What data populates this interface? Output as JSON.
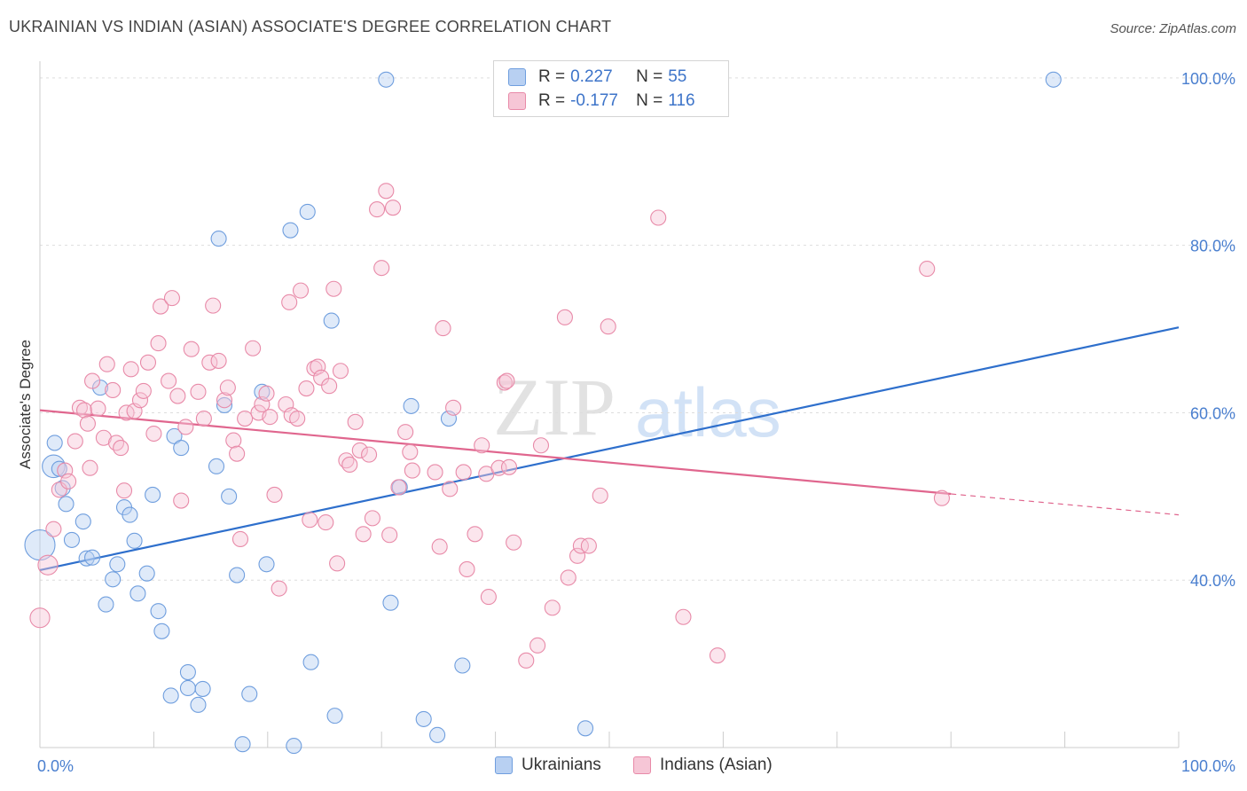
{
  "title": "UKRAINIAN VS INDIAN (ASIAN) ASSOCIATE'S DEGREE CORRELATION CHART",
  "source": "Source: ZipAtlas.com",
  "watermark": {
    "zip": "ZIP",
    "atlas": "atlas"
  },
  "colors": {
    "blue_fill": "#b8d0f2",
    "blue_stroke": "#6f9ede",
    "blue_line": "#2e6fcc",
    "pink_fill": "#f6c6d6",
    "pink_stroke": "#e88aa8",
    "pink_line": "#e0668e",
    "tick_text": "#4a7fcf",
    "grid": "#dddddd"
  },
  "legend": {
    "r_label": "R =",
    "n_label": "N =",
    "rows": [
      {
        "series": "Ukrainians",
        "r": "0.227",
        "n": "55"
      },
      {
        "series": "Indians (Asian)",
        "r": "-0.177",
        "n": "116"
      }
    ]
  },
  "chart_data": {
    "type": "scatter",
    "title": "UKRAINIAN VS INDIAN (ASIAN) ASSOCIATE'S DEGREE CORRELATION CHART",
    "xlabel": "",
    "ylabel": "Associate's Degree",
    "xlim": [
      0,
      100
    ],
    "ylim": [
      20,
      102
    ],
    "x_tick_labels": [
      {
        "value": 0,
        "label": "0.0%"
      },
      {
        "value": 100,
        "label": "100.0%"
      }
    ],
    "x_minor_ticks": [
      0,
      10,
      20,
      30,
      40,
      50,
      60,
      70,
      80,
      90,
      100
    ],
    "y_ticks": [
      {
        "value": 40,
        "label": "40.0%"
      },
      {
        "value": 60,
        "label": "60.0%"
      },
      {
        "value": 80,
        "label": "80.0%"
      },
      {
        "value": 100,
        "label": "100.0%"
      }
    ],
    "grid": "horizontal dashed",
    "series": [
      {
        "name": "Ukrainians",
        "color": "#6f9ede",
        "trend": {
          "x": [
            0,
            100
          ],
          "y": [
            41.2,
            70.2
          ],
          "dashed_from": null
        },
        "points": [
          [
            0,
            44.2,
            2
          ],
          [
            1.2,
            53.6,
            1.5
          ],
          [
            1.3,
            56.4,
            1
          ],
          [
            1.7,
            53.3,
            1
          ],
          [
            2.0,
            51.0,
            1
          ],
          [
            2.3,
            49.1,
            1
          ],
          [
            2.8,
            44.8,
            1
          ],
          [
            3.8,
            47.0,
            1
          ],
          [
            4.1,
            42.6,
            1
          ],
          [
            4.6,
            42.7,
            1
          ],
          [
            5.3,
            63.0,
            1
          ],
          [
            5.8,
            37.1,
            1
          ],
          [
            6.4,
            40.1,
            1
          ],
          [
            6.8,
            41.9,
            1
          ],
          [
            7.4,
            48.7,
            1
          ],
          [
            7.9,
            47.8,
            1
          ],
          [
            8.3,
            44.7,
            1
          ],
          [
            8.6,
            38.4,
            1
          ],
          [
            9.4,
            40.8,
            1
          ],
          [
            9.9,
            50.2,
            1
          ],
          [
            10.4,
            36.3,
            1
          ],
          [
            10.7,
            33.9,
            1
          ],
          [
            11.5,
            26.2,
            1
          ],
          [
            11.8,
            57.2,
            1
          ],
          [
            12.4,
            55.8,
            1
          ],
          [
            13.0,
            29.0,
            1
          ],
          [
            13.0,
            27.1,
            1
          ],
          [
            13.9,
            25.1,
            1
          ],
          [
            14.3,
            27.0,
            1
          ],
          [
            15.5,
            53.6,
            1
          ],
          [
            15.7,
            80.8,
            1
          ],
          [
            16.2,
            60.9,
            1
          ],
          [
            16.6,
            50.0,
            1
          ],
          [
            17.3,
            40.6,
            1
          ],
          [
            17.8,
            20.4,
            1
          ],
          [
            18.4,
            26.4,
            1
          ],
          [
            19.5,
            62.5,
            1
          ],
          [
            19.9,
            41.9,
            1
          ],
          [
            22.0,
            81.8,
            1
          ],
          [
            22.3,
            20.2,
            1
          ],
          [
            23.5,
            84.0,
            1
          ],
          [
            23.8,
            30.2,
            1
          ],
          [
            25.6,
            71.0,
            1
          ],
          [
            25.9,
            23.8,
            1
          ],
          [
            30.4,
            99.8,
            1
          ],
          [
            30.8,
            37.3,
            1
          ],
          [
            31.6,
            51.1,
            1
          ],
          [
            32.6,
            60.8,
            1
          ],
          [
            33.7,
            23.4,
            1
          ],
          [
            34.9,
            21.5,
            1
          ],
          [
            35.9,
            59.3,
            1
          ],
          [
            37.1,
            29.8,
            1
          ],
          [
            47.9,
            22.3,
            1
          ],
          [
            89.0,
            99.8,
            1
          ]
        ]
      },
      {
        "name": "Indians (Asian)",
        "color": "#e88aa8",
        "trend": {
          "x": [
            0,
            100
          ],
          "y": [
            60.3,
            47.8
          ],
          "dashed_from": 80
        },
        "points": [
          [
            0,
            35.5,
            1.3
          ],
          [
            0.7,
            41.8,
            1.3
          ],
          [
            1.2,
            46.1,
            1
          ],
          [
            1.7,
            50.8,
            1
          ],
          [
            2.2,
            53.1,
            1
          ],
          [
            2.5,
            51.8,
            1
          ],
          [
            3.1,
            56.6,
            1
          ],
          [
            3.5,
            60.6,
            1
          ],
          [
            3.9,
            60.3,
            1
          ],
          [
            4.2,
            58.7,
            1
          ],
          [
            4.4,
            53.4,
            1
          ],
          [
            4.6,
            63.8,
            1
          ],
          [
            5.1,
            60.5,
            1
          ],
          [
            5.6,
            57.0,
            1
          ],
          [
            5.9,
            65.8,
            1
          ],
          [
            6.4,
            62.7,
            1
          ],
          [
            6.7,
            56.4,
            1
          ],
          [
            7.1,
            55.8,
            1
          ],
          [
            7.4,
            50.7,
            1
          ],
          [
            7.6,
            60.0,
            1
          ],
          [
            8.0,
            65.2,
            1
          ],
          [
            8.3,
            60.2,
            1
          ],
          [
            8.8,
            61.5,
            1
          ],
          [
            9.1,
            62.6,
            1
          ],
          [
            9.5,
            66.0,
            1
          ],
          [
            10.0,
            57.5,
            1
          ],
          [
            10.4,
            68.3,
            1
          ],
          [
            10.6,
            72.7,
            1
          ],
          [
            11.3,
            63.8,
            1
          ],
          [
            11.6,
            73.7,
            1
          ],
          [
            12.1,
            62.0,
            1
          ],
          [
            12.4,
            49.5,
            1
          ],
          [
            12.8,
            58.3,
            1
          ],
          [
            13.3,
            67.6,
            1
          ],
          [
            13.9,
            62.5,
            1
          ],
          [
            14.4,
            59.3,
            1
          ],
          [
            14.9,
            66.0,
            1
          ],
          [
            15.2,
            72.8,
            1
          ],
          [
            15.7,
            66.2,
            1
          ],
          [
            16.2,
            61.5,
            1
          ],
          [
            16.5,
            63.0,
            1
          ],
          [
            17.0,
            56.7,
            1
          ],
          [
            17.3,
            55.1,
            1
          ],
          [
            17.6,
            44.9,
            1
          ],
          [
            18.0,
            59.3,
            1
          ],
          [
            18.7,
            67.7,
            1
          ],
          [
            19.2,
            60.0,
            1
          ],
          [
            19.5,
            61.0,
            1
          ],
          [
            19.9,
            62.3,
            1
          ],
          [
            20.2,
            59.5,
            1
          ],
          [
            20.6,
            50.2,
            1
          ],
          [
            21.0,
            39.0,
            1
          ],
          [
            21.6,
            61.0,
            1
          ],
          [
            21.9,
            73.2,
            1
          ],
          [
            22.1,
            59.7,
            1
          ],
          [
            22.6,
            59.3,
            1
          ],
          [
            22.9,
            74.6,
            1
          ],
          [
            23.4,
            62.9,
            1
          ],
          [
            23.7,
            47.2,
            1
          ],
          [
            24.1,
            65.3,
            1
          ],
          [
            24.4,
            65.5,
            1
          ],
          [
            24.7,
            64.2,
            1
          ],
          [
            25.1,
            46.9,
            1
          ],
          [
            25.4,
            63.2,
            1
          ],
          [
            25.8,
            74.8,
            1
          ],
          [
            26.1,
            42.0,
            1
          ],
          [
            26.4,
            65.0,
            1
          ],
          [
            26.9,
            54.3,
            1
          ],
          [
            27.2,
            53.8,
            1
          ],
          [
            27.7,
            58.9,
            1
          ],
          [
            28.1,
            55.5,
            1
          ],
          [
            28.4,
            45.5,
            1
          ],
          [
            28.9,
            55.0,
            1
          ],
          [
            29.2,
            47.4,
            1
          ],
          [
            29.6,
            84.3,
            1
          ],
          [
            30.0,
            77.3,
            1
          ],
          [
            30.4,
            86.5,
            1
          ],
          [
            30.7,
            45.4,
            1
          ],
          [
            31.0,
            84.5,
            1
          ],
          [
            31.5,
            51.1,
            1
          ],
          [
            32.1,
            57.7,
            1
          ],
          [
            32.5,
            55.3,
            1
          ],
          [
            32.7,
            53.1,
            1
          ],
          [
            34.7,
            52.9,
            1
          ],
          [
            35.1,
            44.0,
            1
          ],
          [
            35.4,
            70.1,
            1
          ],
          [
            36.0,
            50.9,
            1
          ],
          [
            36.3,
            60.6,
            1
          ],
          [
            37.2,
            52.9,
            1
          ],
          [
            37.5,
            41.3,
            1
          ],
          [
            38.2,
            45.5,
            1
          ],
          [
            38.8,
            56.1,
            1
          ],
          [
            39.2,
            52.7,
            1
          ],
          [
            39.4,
            38.0,
            1
          ],
          [
            40.3,
            53.4,
            1
          ],
          [
            40.8,
            63.6,
            1
          ],
          [
            41.0,
            63.8,
            1
          ],
          [
            41.2,
            53.5,
            1
          ],
          [
            41.6,
            44.5,
            1
          ],
          [
            42.7,
            30.4,
            1
          ],
          [
            43.7,
            32.2,
            1
          ],
          [
            44.0,
            56.1,
            1
          ],
          [
            45.0,
            36.7,
            1
          ],
          [
            46.1,
            71.4,
            1
          ],
          [
            46.4,
            40.3,
            1
          ],
          [
            47.2,
            42.9,
            1
          ],
          [
            47.5,
            44.1,
            1
          ],
          [
            48.2,
            44.1,
            1
          ],
          [
            49.2,
            50.1,
            1
          ],
          [
            49.9,
            70.3,
            1
          ],
          [
            54.3,
            83.3,
            1
          ],
          [
            56.5,
            35.6,
            1
          ],
          [
            59.5,
            31.0,
            1
          ],
          [
            77.9,
            77.2,
            1
          ],
          [
            79.2,
            49.8,
            1
          ]
        ]
      }
    ]
  },
  "bottom_legend": [
    {
      "label": "Ukrainians"
    },
    {
      "label": "Indians (Asian)"
    }
  ]
}
